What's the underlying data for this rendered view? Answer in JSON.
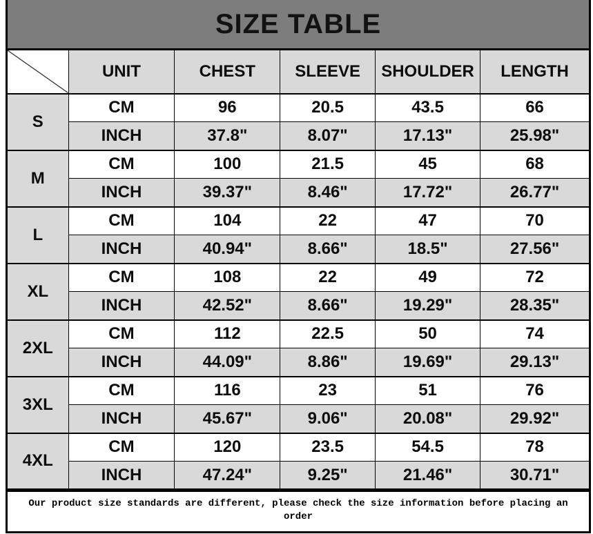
{
  "title": "SIZE TABLE",
  "table": {
    "headers": [
      "UNIT",
      "CHEST",
      "SLEEVE",
      "SHOULDER",
      "LENGTH"
    ],
    "sizes": [
      {
        "label": "S",
        "rows": [
          {
            "unit": "CM",
            "values": [
              "96",
              "20.5",
              "43.5",
              "66"
            ]
          },
          {
            "unit": "INCH",
            "values": [
              "37.8\"",
              "8.07\"",
              "17.13\"",
              "25.98\""
            ]
          }
        ]
      },
      {
        "label": "M",
        "rows": [
          {
            "unit": "CM",
            "values": [
              "100",
              "21.5",
              "45",
              "68"
            ]
          },
          {
            "unit": "INCH",
            "values": [
              "39.37\"",
              "8.46\"",
              "17.72\"",
              "26.77\""
            ]
          }
        ]
      },
      {
        "label": "L",
        "rows": [
          {
            "unit": "CM",
            "values": [
              "104",
              "22",
              "47",
              "70"
            ]
          },
          {
            "unit": "INCH",
            "values": [
              "40.94\"",
              "8.66\"",
              "18.5\"",
              "27.56\""
            ]
          }
        ]
      },
      {
        "label": "XL",
        "rows": [
          {
            "unit": "CM",
            "values": [
              "108",
              "22",
              "49",
              "72"
            ]
          },
          {
            "unit": "INCH",
            "values": [
              "42.52\"",
              "8.66\"",
              "19.29\"",
              "28.35\""
            ]
          }
        ]
      },
      {
        "label": "2XL",
        "rows": [
          {
            "unit": "CM",
            "values": [
              "112",
              "22.5",
              "50",
              "74"
            ]
          },
          {
            "unit": "INCH",
            "values": [
              "44.09\"",
              "8.86\"",
              "19.69\"",
              "29.13\""
            ]
          }
        ]
      },
      {
        "label": "3XL",
        "rows": [
          {
            "unit": "CM",
            "values": [
              "116",
              "23",
              "51",
              "76"
            ]
          },
          {
            "unit": "INCH",
            "values": [
              "45.67\"",
              "9.06\"",
              "20.08\"",
              "29.92\""
            ]
          }
        ]
      },
      {
        "label": "4XL",
        "rows": [
          {
            "unit": "CM",
            "values": [
              "120",
              "23.5",
              "54.5",
              "78"
            ]
          },
          {
            "unit": "INCH",
            "values": [
              "47.24\"",
              "9.25\"",
              "21.46\"",
              "30.71\""
            ]
          }
        ]
      }
    ]
  },
  "note": "Our product size standards are different, please check the size information before placing an order",
  "colors": {
    "title_bg": "#7d7d7d",
    "shaded_cell_bg": "#d9d9d9",
    "cell_bg": "#ffffff",
    "border": "#000000",
    "text": "#0d0d0d"
  }
}
